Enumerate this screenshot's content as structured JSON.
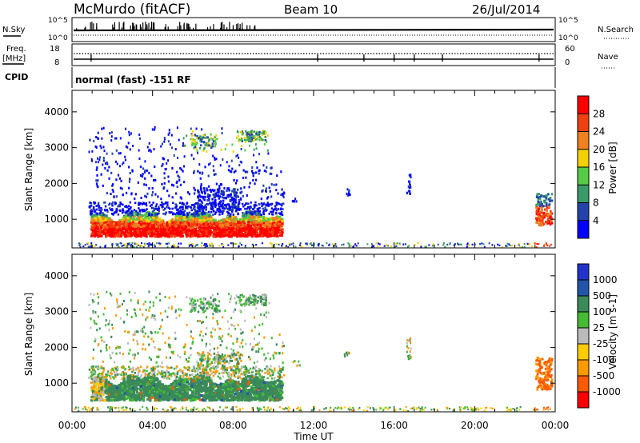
{
  "header": {
    "station": "McMurdo (fitACF)",
    "beam": "Beam 10",
    "date": "26/Jul/2014"
  },
  "side_labels": {
    "nsky": "N.Sky",
    "freq_line1": "Freq.",
    "freq_line2": "[MHz]",
    "cpid": "CPID",
    "nsearch": "N.Search",
    "nave": "Nave"
  },
  "small_ticks": {
    "nsky_hi": "10^5",
    "nsky_lo": "10^0",
    "freq_hi": "18",
    "freq_lo": "8",
    "nave_hi": "60",
    "nave_lo": "0"
  },
  "cpid_text": "normal (fast) -151 RF",
  "colors": {
    "power": [
      "#0000ff",
      "#2244aa",
      "#3a9a6a",
      "#55cc44",
      "#f5d000",
      "#f08020",
      "#f04010",
      "#ff0000"
    ],
    "velocity": [
      "#ff0000",
      "#ff5a00",
      "#ff9900",
      "#ffcc00",
      "#bbbbbb",
      "#44bb33",
      "#3a8a5a",
      "#2255aa",
      "#2233cc"
    ]
  },
  "chart_data": [
    {
      "type": "heatmap",
      "name": "power",
      "ylabel": "Slant Range [km]",
      "y_ticks": [
        "1000",
        "2000",
        "3000",
        "4000"
      ],
      "y_values": [
        1000,
        2000,
        3000,
        4000
      ],
      "ylim": [
        200,
        4600
      ],
      "xlim_hours": [
        0,
        24
      ],
      "colorbar_label": "Power [dB]",
      "colorbar_ticks": [
        "4",
        "8",
        "12",
        "16",
        "20",
        "24",
        "28"
      ],
      "colorbar_range": [
        0,
        32
      ]
    },
    {
      "type": "heatmap",
      "name": "velocity",
      "ylabel": "Slant Range [km]",
      "y_ticks": [
        "1000",
        "2000",
        "3000",
        "4000"
      ],
      "y_values": [
        1000,
        2000,
        3000,
        4000
      ],
      "ylim": [
        200,
        4600
      ],
      "xlim_hours": [
        0,
        24
      ],
      "colorbar_label": "Velocity [m s-1]",
      "colorbar_ticks": [
        "-1000",
        "-500",
        "-100",
        "-25",
        "25",
        "100",
        "500",
        "1000"
      ]
    }
  ],
  "x_axis": {
    "label": "Time UT",
    "ticks": [
      "00:00",
      "04:00",
      "08:00",
      "12:00",
      "16:00",
      "20:00",
      "00:00"
    ],
    "values": [
      0,
      4,
      8,
      12,
      16,
      20,
      24
    ]
  }
}
